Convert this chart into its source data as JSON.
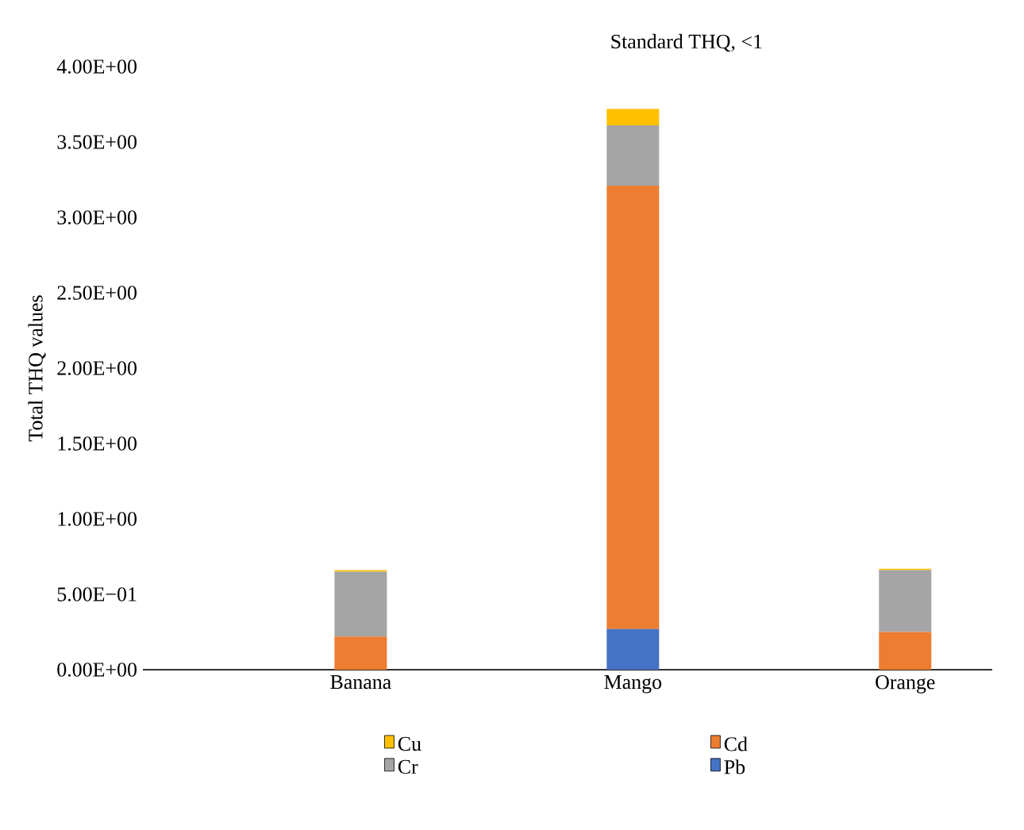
{
  "chart_data": {
    "type": "bar",
    "stacked": true,
    "title": "Standard THQ, <1",
    "ylabel": "Total THQ values",
    "categories": [
      "Banana",
      "Mango",
      "Orange"
    ],
    "series": [
      {
        "name": "Pb",
        "color": "#4472c4",
        "values": [
          0,
          0.27,
          0
        ]
      },
      {
        "name": "Cd",
        "color": "#ed7d31",
        "values": [
          0.22,
          2.94,
          0.25
        ]
      },
      {
        "name": "Cr",
        "color": "#a5a5a5",
        "values": [
          0.43,
          0.4,
          0.41
        ]
      },
      {
        "name": "Cu",
        "color": "#ffc000",
        "values": [
          0.01,
          0.11,
          0.01
        ]
      }
    ],
    "ylim": [
      0,
      4
    ],
    "yticks": [
      {
        "value": 0,
        "label": "0.00E+00"
      },
      {
        "value": 0.5,
        "label": "5.00E−01"
      },
      {
        "value": 1,
        "label": "1.00E+00"
      },
      {
        "value": 1.5,
        "label": "1.50E+00"
      },
      {
        "value": 2,
        "label": "2.00E+00"
      },
      {
        "value": 2.5,
        "label": "2.50E+00"
      },
      {
        "value": 3,
        "label": "3.00E+00"
      },
      {
        "value": 3.5,
        "label": "3.50E+00"
      },
      {
        "value": 4,
        "label": "4.00E+00"
      }
    ],
    "legend": "bottom"
  }
}
